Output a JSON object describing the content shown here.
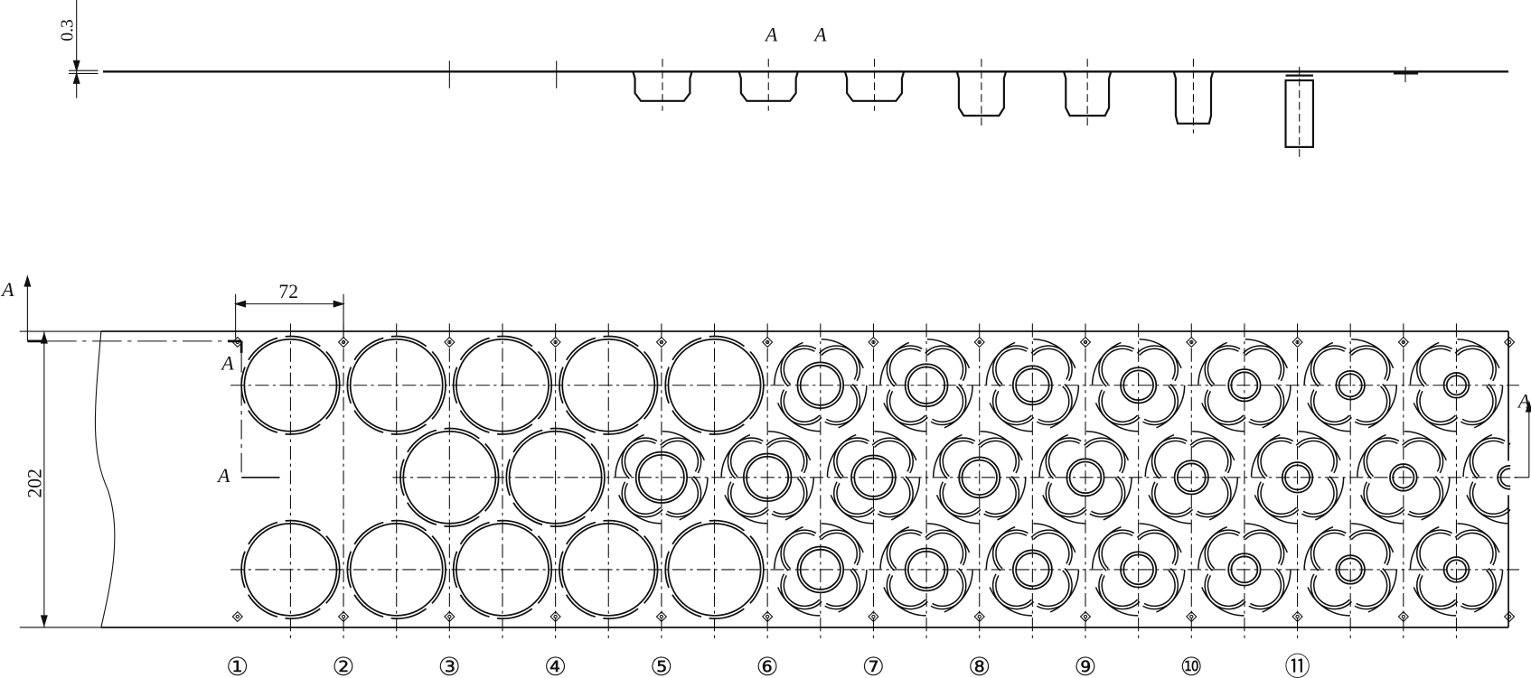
{
  "drawing": {
    "section_label": "A",
    "dimensions": {
      "sheet_thickness": "0.3",
      "station_pitch": "72",
      "strip_width": "202"
    },
    "station_labels": [
      "①",
      "②",
      "③",
      "④",
      "⑤",
      "⑥",
      "⑦",
      "⑧",
      "⑨",
      "⑩",
      "⑪"
    ],
    "line_color": "#111111"
  }
}
